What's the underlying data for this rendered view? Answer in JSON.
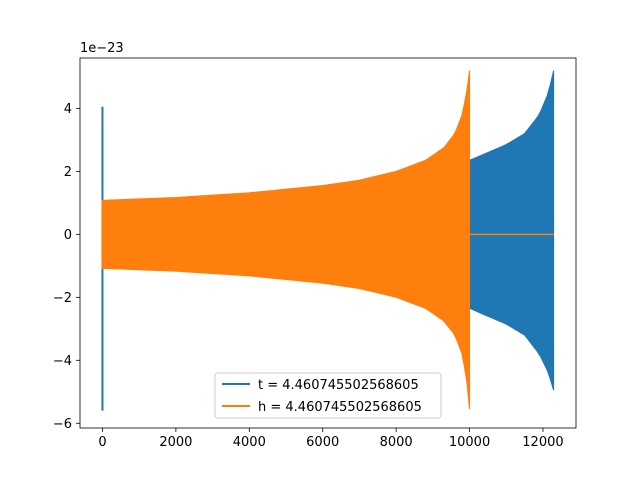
{
  "chart_data": {
    "type": "line",
    "title": "",
    "xlabel": "",
    "ylabel": "",
    "y_offset_text": "1e−23",
    "xlim": [
      -612,
      12900
    ],
    "ylim": [
      -6.15,
      5.6
    ],
    "xticks": [
      0,
      2000,
      4000,
      6000,
      8000,
      10000,
      12000
    ],
    "xtick_labels": [
      "0",
      "2000",
      "4000",
      "6000",
      "8000",
      "10000",
      "12000"
    ],
    "yticks": [
      -6,
      -4,
      -2,
      0,
      2,
      4
    ],
    "ytick_labels": [
      "−6",
      "−4",
      "−2",
      "0",
      "2",
      "4"
    ],
    "grid": false,
    "legend_position": "lower center",
    "series": [
      {
        "name": "t = 4.460745502568605",
        "color": "#1f77b4",
        "spike": {
          "x": 0,
          "max": 4.05,
          "min": -5.6
        },
        "x_start": 0,
        "x_end": 12290,
        "envelope_upper": [
          [
            0,
            1.05
          ],
          [
            2000,
            1.15
          ],
          [
            4000,
            1.27
          ],
          [
            6000,
            1.45
          ],
          [
            8000,
            1.75
          ],
          [
            9000,
            2.0
          ],
          [
            10000,
            2.35
          ],
          [
            11000,
            2.85
          ],
          [
            11500,
            3.2
          ],
          [
            11900,
            3.8
          ],
          [
            12150,
            4.5
          ],
          [
            12290,
            5.2
          ]
        ],
        "envelope_lower": [
          [
            0,
            -1.05
          ],
          [
            2000,
            -1.15
          ],
          [
            4000,
            -1.27
          ],
          [
            6000,
            -1.45
          ],
          [
            8000,
            -1.75
          ],
          [
            9000,
            -2.0
          ],
          [
            10000,
            -2.35
          ],
          [
            11000,
            -2.85
          ],
          [
            11500,
            -3.2
          ],
          [
            11900,
            -3.8
          ],
          [
            12150,
            -4.4
          ],
          [
            12290,
            -4.95
          ]
        ],
        "tail": {
          "x_start": 12290,
          "x_end": 12290,
          "value": 0
        }
      },
      {
        "name": "h = 4.460745502568605",
        "color": "#ff7f0e",
        "spike": {
          "x": 0,
          "max": 1.1,
          "min": -1.1
        },
        "x_start": 0,
        "x_end": 10000,
        "envelope_upper": [
          [
            0,
            1.08
          ],
          [
            2000,
            1.17
          ],
          [
            4000,
            1.32
          ],
          [
            6000,
            1.55
          ],
          [
            7000,
            1.72
          ],
          [
            8000,
            2.0
          ],
          [
            8800,
            2.35
          ],
          [
            9300,
            2.75
          ],
          [
            9600,
            3.2
          ],
          [
            9800,
            3.8
          ],
          [
            9920,
            4.5
          ],
          [
            10000,
            5.2
          ]
        ],
        "envelope_lower": [
          [
            0,
            -1.08
          ],
          [
            2000,
            -1.17
          ],
          [
            4000,
            -1.32
          ],
          [
            6000,
            -1.55
          ],
          [
            7000,
            -1.72
          ],
          [
            8000,
            -2.0
          ],
          [
            8800,
            -2.35
          ],
          [
            9300,
            -2.75
          ],
          [
            9600,
            -3.2
          ],
          [
            9800,
            -3.8
          ],
          [
            9920,
            -4.6
          ],
          [
            10000,
            -5.55
          ]
        ],
        "tail": {
          "x_start": 10000,
          "x_end": 12290,
          "value": 0
        }
      }
    ]
  }
}
